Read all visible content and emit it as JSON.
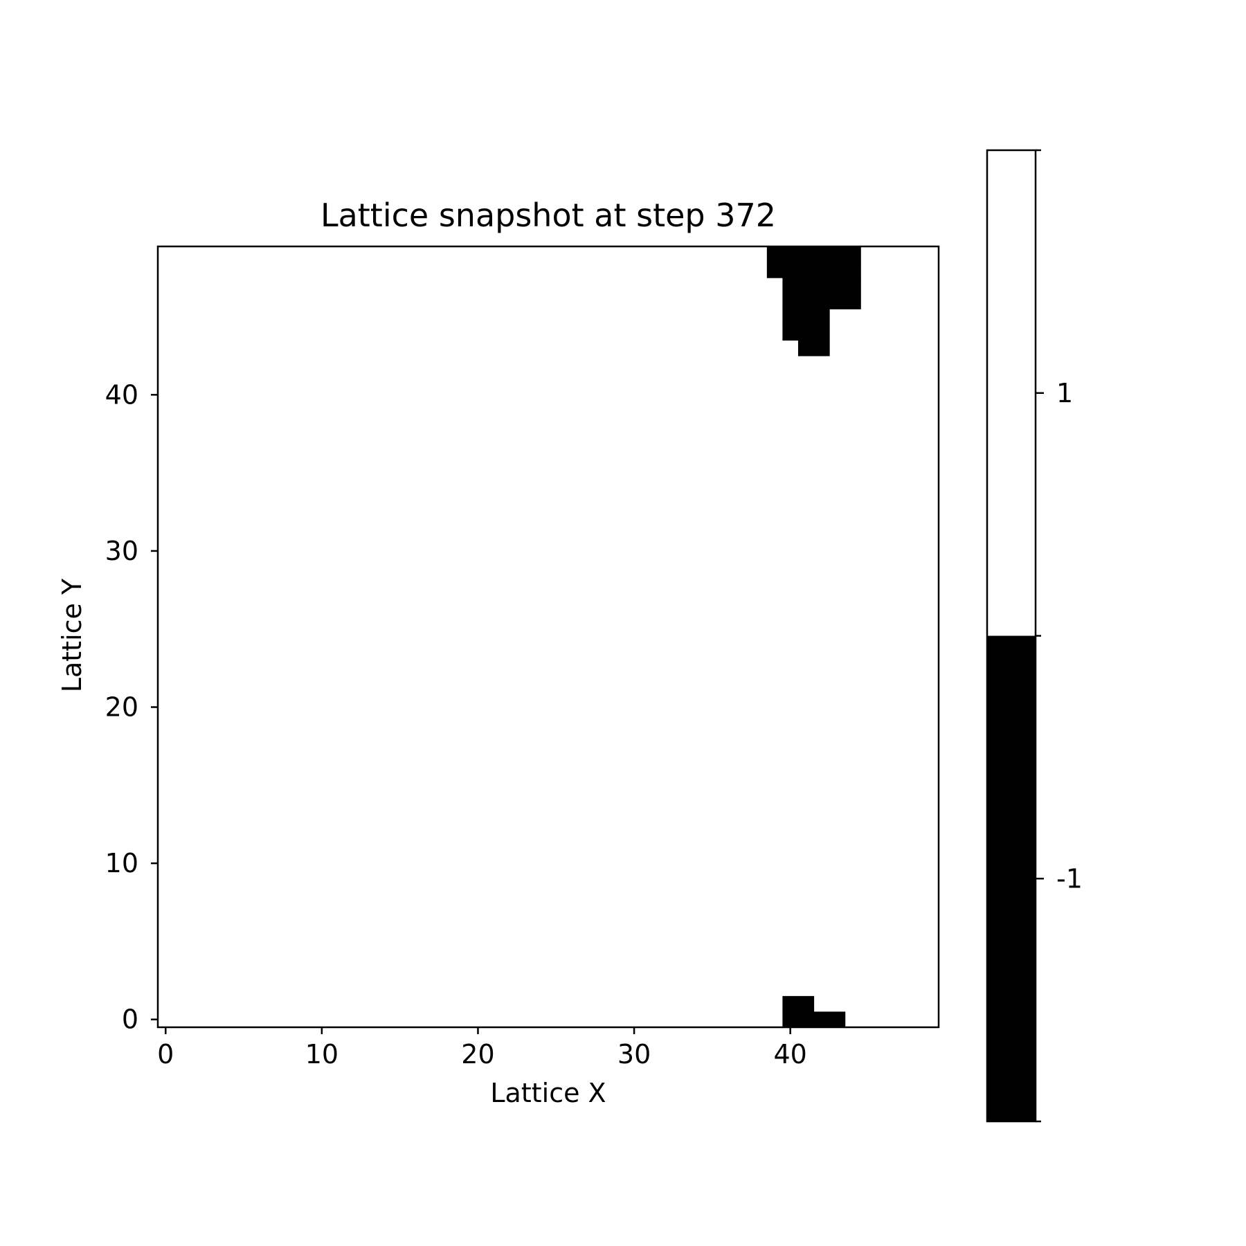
{
  "chart_data": {
    "type": "heatmap",
    "title": "Lattice snapshot at step 372",
    "xlabel": "Lattice X",
    "ylabel": "Lattice Y",
    "grid_size": [
      50,
      50
    ],
    "xlim": [
      -0.5,
      49.5
    ],
    "ylim": [
      -0.5,
      49.5
    ],
    "xticks": [
      0,
      10,
      20,
      30,
      40
    ],
    "xtick_labels": [
      "0",
      "10",
      "20",
      "30",
      "40"
    ],
    "yticks": [
      0,
      10,
      20,
      30,
      40
    ],
    "ytick_labels": [
      "0",
      "10",
      "20",
      "30",
      "40"
    ],
    "grid": false,
    "default_value": 1,
    "spin_values": [
      -1,
      1
    ],
    "colormap": {
      "-1": "#000000",
      "1": "#ffffff"
    },
    "down_spin_cells": [
      {
        "y": 49,
        "x_from": 39,
        "x_to": 44
      },
      {
        "y": 48,
        "x_from": 39,
        "x_to": 44
      },
      {
        "y": 47,
        "x_from": 40,
        "x_to": 44
      },
      {
        "y": 46,
        "x_from": 40,
        "x_to": 44
      },
      {
        "y": 45,
        "x_from": 40,
        "x_to": 42
      },
      {
        "y": 44,
        "x_from": 40,
        "x_to": 42
      },
      {
        "y": 43,
        "x_from": 41,
        "x_to": 42
      },
      {
        "y": 1,
        "x_from": 40,
        "x_to": 41
      },
      {
        "y": 0,
        "x_from": 40,
        "x_to": 43
      }
    ],
    "colorbar": {
      "ticks": [
        1,
        -1
      ],
      "tick_labels": [
        "1",
        "-1"
      ],
      "range": [
        -2,
        2
      ]
    }
  }
}
